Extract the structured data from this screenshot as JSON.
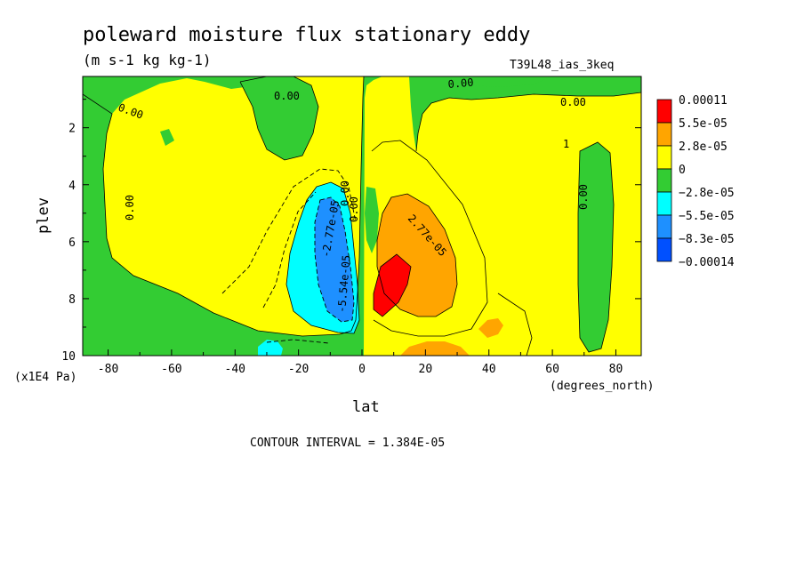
{
  "chart_data": {
    "type": "heatmap",
    "title": "poleward moisture flux stationary eddy",
    "units": "(m s-1 kg kg-1)",
    "dataset": "T39L48_ias_3keq",
    "xlabel": "lat",
    "ylabel": "plev",
    "x_units": "(degrees_north)",
    "y_units": "(x1E4 Pa)",
    "xlim": [
      -88,
      88
    ],
    "ylim": [
      10,
      0.2
    ],
    "x_ticks": [
      "-80",
      "-60",
      "-40",
      "-20",
      "0",
      "20",
      "40",
      "60",
      "80"
    ],
    "y_ticks": [
      "2",
      "4",
      "6",
      "8",
      "10"
    ],
    "colorbar_labels": [
      "0.00011",
      "5.5e-05",
      "2.8e-05",
      "0",
      "−2.8e-05",
      "−5.5e-05",
      "−8.3e-05",
      "−0.00014"
    ],
    "colorbar_colors": [
      "#ff0000",
      "#ffa500",
      "#ffff00",
      "#33cc33",
      "#00ffff",
      "#1e90ff",
      "#0050ff"
    ],
    "contour_interval": "CONTOUR INTERVAL = 1.384E-05",
    "contour_labels": [
      "0.00",
      "0.00",
      "0.00",
      "0.00",
      "0.00",
      "0.00",
      "0.00",
      "0.00",
      "-2.77e-05",
      "-5.54e-05",
      "2.77e-05",
      "1"
    ],
    "features": [
      {
        "region": "negative core",
        "lat": -10,
        "plev": 7.5,
        "value": -8.3e-05
      },
      {
        "region": "positive core",
        "lat": 8,
        "plev": 7.8,
        "value": 0.00011
      },
      {
        "region": "positive lobe",
        "lat": 15,
        "plev": 6,
        "value": 5.5e-05
      },
      {
        "region": "near-surface positive",
        "lat": 25,
        "plev": 9.8,
        "value": 5.5e-05
      }
    ]
  }
}
